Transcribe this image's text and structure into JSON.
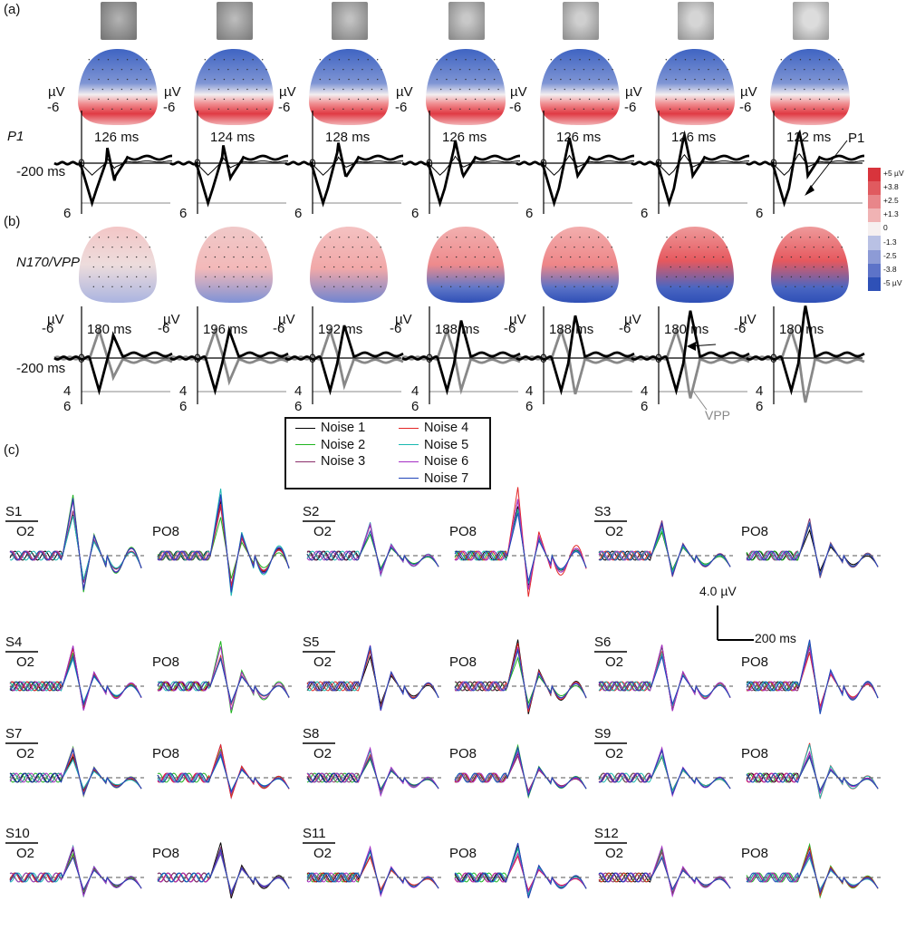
{
  "panels": {
    "a": "(a)",
    "b": "(b)",
    "c": "(c)"
  },
  "units": {
    "uv": "µV",
    "ms": "-200 ms",
    "neg6": "-6",
    "pos6": "6",
    "pos4": "4",
    "zero": "0"
  },
  "row_a": {
    "label": "P1",
    "latencies": [
      "126 ms",
      "124 ms",
      "128 ms",
      "126 ms",
      "126 ms",
      "126 ms",
      "122 ms"
    ],
    "annotation": "P1"
  },
  "row_b": {
    "label": "N170/VPP",
    "latencies": [
      "180 ms",
      "196 ms",
      "192 ms",
      "188 ms",
      "188 ms",
      "180 ms",
      "180 ms"
    ],
    "annotation": "VPP"
  },
  "colorbar": {
    "labels": [
      "+5 µV",
      "+3.8",
      "+2.5",
      "+1.3",
      "0",
      "-1.3",
      "-2.5",
      "-3.8",
      "-5 µV"
    ],
    "colors": [
      "#d8343c",
      "#e05a5f",
      "#e8868a",
      "#f0b3b4",
      "#f6f0f0",
      "#b9c1e4",
      "#8d9bd6",
      "#5d73c8",
      "#2f51b7"
    ]
  },
  "legend": {
    "items": [
      {
        "label": "Noise 1",
        "color": "#000000"
      },
      {
        "label": "Noise 2",
        "color": "#1fb51f"
      },
      {
        "label": "Noise 3",
        "color": "#8b2f6b"
      },
      {
        "label": "Noise 4",
        "color": "#e32626"
      },
      {
        "label": "Noise 5",
        "color": "#19b8b0"
      },
      {
        "label": "Noise 6",
        "color": "#a52fc4"
      },
      {
        "label": "Noise 7",
        "color": "#2044b8"
      }
    ]
  },
  "subjects": [
    "S1",
    "S2",
    "S3",
    "S4",
    "S5",
    "S6",
    "S7",
    "S8",
    "S9",
    "S10",
    "S11",
    "S12"
  ],
  "electrodes": {
    "left": "O2",
    "right": "PO8"
  },
  "scalebar": {
    "amp": "4.0 µV",
    "time": "200 ms"
  }
}
